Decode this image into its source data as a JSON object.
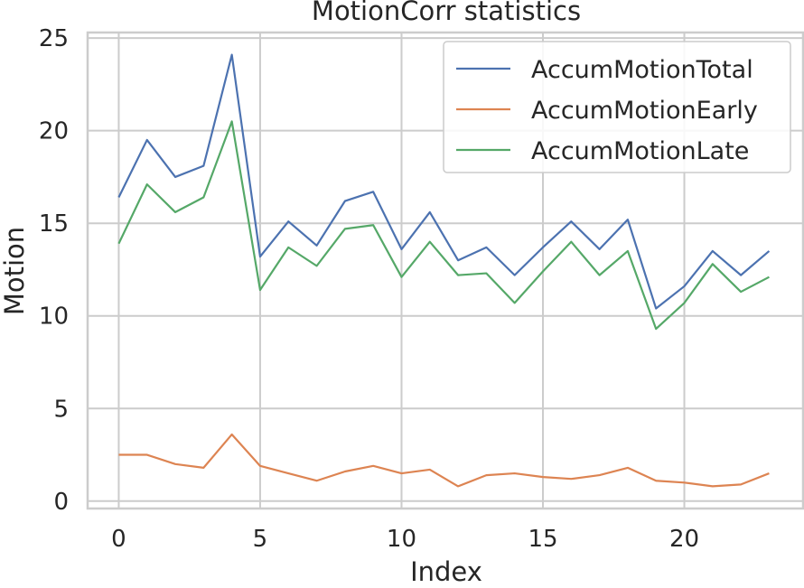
{
  "chart_data": {
    "type": "line",
    "title": "MotionCorr statistics",
    "xlabel": "Index",
    "ylabel": "Motion",
    "xlim": [
      -1.1,
      24.2
    ],
    "ylim": [
      -0.4,
      25.3
    ],
    "xticks": [
      0,
      5,
      10,
      15,
      20
    ],
    "yticks": [
      0,
      5,
      10,
      15,
      20,
      25
    ],
    "grid": true,
    "legend_position": "top-right",
    "x": [
      0,
      1,
      2,
      3,
      4,
      5,
      6,
      7,
      8,
      9,
      10,
      11,
      12,
      13,
      14,
      15,
      16,
      17,
      18,
      19,
      20,
      21,
      22,
      23
    ],
    "series": [
      {
        "name": "AccumMotionTotal",
        "color": "#4c72b0",
        "values": [
          16.4,
          19.5,
          17.5,
          18.1,
          24.1,
          13.2,
          15.1,
          13.8,
          16.2,
          16.7,
          13.6,
          15.6,
          13.0,
          13.7,
          12.2,
          13.7,
          15.1,
          13.6,
          15.2,
          10.4,
          11.6,
          13.5,
          12.2,
          13.5
        ]
      },
      {
        "name": "AccumMotionEarly",
        "color": "#dd8452",
        "values": [
          2.5,
          2.5,
          2.0,
          1.8,
          3.6,
          1.9,
          1.5,
          1.1,
          1.6,
          1.9,
          1.5,
          1.7,
          0.8,
          1.4,
          1.5,
          1.3,
          1.2,
          1.4,
          1.8,
          1.1,
          1.0,
          0.8,
          0.9,
          1.5
        ]
      },
      {
        "name": "AccumMotionLate",
        "color": "#55a868",
        "values": [
          13.9,
          17.1,
          15.6,
          16.4,
          20.5,
          11.4,
          13.7,
          12.7,
          14.7,
          14.9,
          12.1,
          14.0,
          12.2,
          12.3,
          10.7,
          12.4,
          14.0,
          12.2,
          13.5,
          9.3,
          10.7,
          12.8,
          11.3,
          12.1
        ]
      }
    ]
  }
}
